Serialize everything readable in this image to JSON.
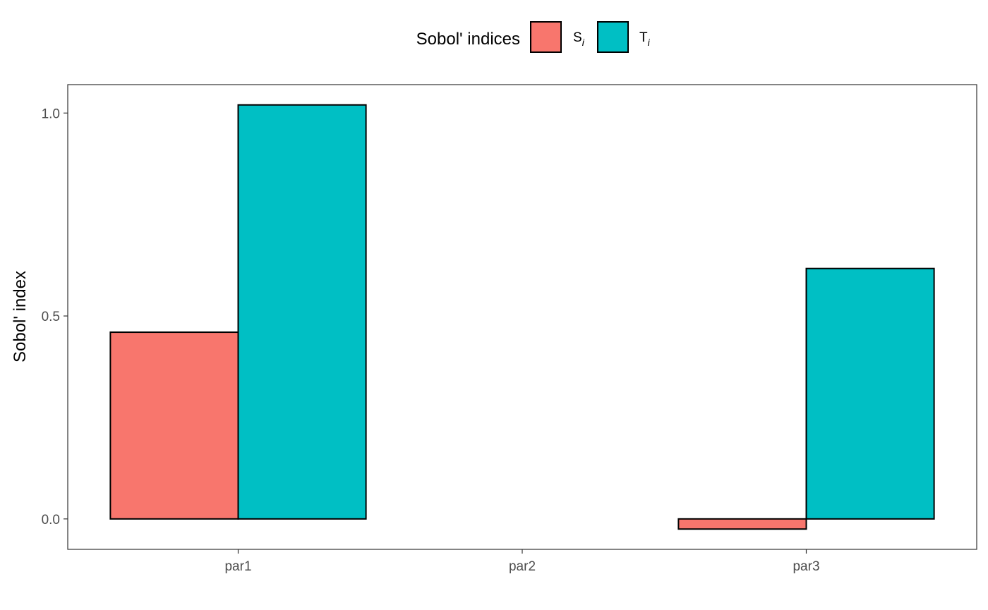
{
  "chart_data": {
    "type": "bar",
    "categories": [
      "par1",
      "par2",
      "par3"
    ],
    "series": [
      {
        "name": "S",
        "subscript": "i",
        "color": "#F8766D",
        "values": [
          0.46,
          0.0,
          -0.025
        ]
      },
      {
        "name": "T",
        "subscript": "i",
        "color": "#00BFC4",
        "values": [
          1.02,
          0.0,
          0.617
        ]
      }
    ],
    "ylabel": "Sobol' index",
    "xlabel": "",
    "ylim": [
      -0.075,
      1.07
    ],
    "yticks": [
      0.0,
      0.5,
      1.0
    ],
    "ytick_labels": [
      "0.0",
      "0.5",
      "1.0"
    ],
    "legend": {
      "title": "Sobol' indices",
      "position": "top"
    },
    "grid": false,
    "bar_outline_color": "#000000",
    "panel_border_color": "#333333"
  }
}
